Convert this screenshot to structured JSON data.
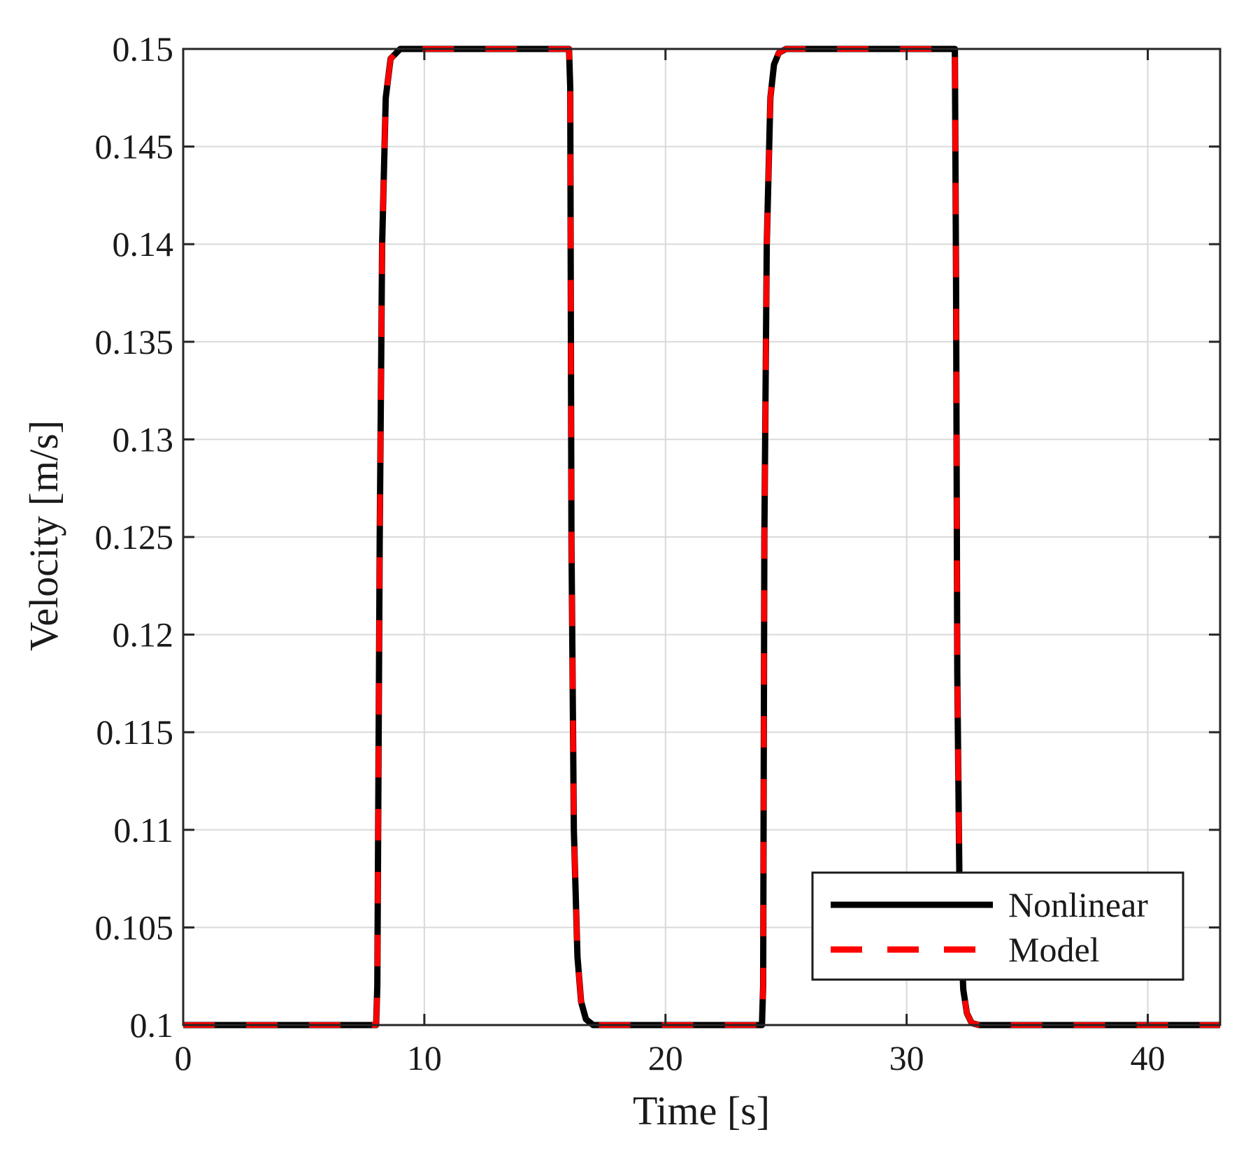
{
  "chart_data": {
    "type": "line",
    "title": "",
    "xlabel": "Time [s]",
    "ylabel": "Velocity [m/s]",
    "xlim": [
      0,
      43
    ],
    "ylim": [
      0.1,
      0.15
    ],
    "x_ticks": [
      0,
      10,
      20,
      30,
      40
    ],
    "x_tick_labels": [
      "0",
      "10",
      "20",
      "30",
      "40"
    ],
    "y_ticks": [
      0.1,
      0.105,
      0.11,
      0.115,
      0.12,
      0.125,
      0.13,
      0.135,
      0.14,
      0.145,
      0.15
    ],
    "y_tick_labels": [
      "0.1",
      "0.105",
      "0.11",
      "0.115",
      "0.12",
      "0.125",
      "0.13",
      "0.135",
      "0.14",
      "0.145",
      "0.15"
    ],
    "grid": true,
    "legend_position": "bottom-right",
    "series": [
      {
        "name": "Nonlinear",
        "color": "#000000",
        "style": "solid",
        "x": [
          0,
          7.9,
          8.0,
          8.05,
          8.15,
          8.25,
          8.4,
          8.6,
          9.0,
          16.0,
          16.05,
          16.1,
          16.2,
          16.35,
          16.5,
          16.7,
          17.0,
          24.0,
          24.05,
          24.1,
          24.2,
          24.35,
          24.5,
          24.7,
          25.0,
          32.0,
          32.05,
          32.1,
          32.2,
          32.35,
          32.5,
          32.7,
          33.0,
          43
        ],
        "y": [
          0.1,
          0.1,
          0.1,
          0.102,
          0.125,
          0.14,
          0.1475,
          0.1495,
          0.15,
          0.15,
          0.148,
          0.125,
          0.11,
          0.1035,
          0.1012,
          0.1003,
          0.1,
          0.1,
          0.102,
          0.125,
          0.14,
          0.1475,
          0.1492,
          0.1498,
          0.15,
          0.15,
          0.138,
          0.118,
          0.106,
          0.1018,
          0.1006,
          0.1001,
          0.1,
          0.1
        ]
      },
      {
        "name": "Model",
        "color": "#ff0000",
        "style": "dashed",
        "x": [
          0,
          7.9,
          8.0,
          8.05,
          8.15,
          8.25,
          8.4,
          8.6,
          9.0,
          16.0,
          16.05,
          16.1,
          16.2,
          16.35,
          16.5,
          16.7,
          17.0,
          24.0,
          24.05,
          24.1,
          24.2,
          24.35,
          24.5,
          24.7,
          25.0,
          32.0,
          32.05,
          32.1,
          32.2,
          32.35,
          32.5,
          32.7,
          33.0,
          43
        ],
        "y": [
          0.1,
          0.1,
          0.1,
          0.102,
          0.125,
          0.14,
          0.1475,
          0.1495,
          0.15,
          0.15,
          0.148,
          0.125,
          0.11,
          0.1035,
          0.1012,
          0.1003,
          0.1,
          0.1,
          0.102,
          0.125,
          0.14,
          0.1475,
          0.1492,
          0.1498,
          0.15,
          0.15,
          0.138,
          0.118,
          0.106,
          0.1018,
          0.1006,
          0.1001,
          0.1,
          0.1
        ]
      }
    ]
  }
}
